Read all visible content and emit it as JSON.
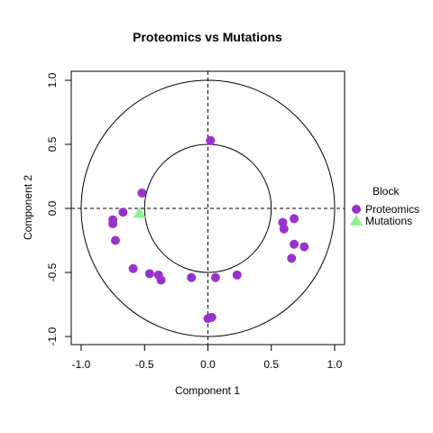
{
  "chart_data": {
    "type": "scatter",
    "title": "Proteomics vs Mutations",
    "xlabel": "Component  1",
    "ylabel": "Component  2",
    "xlim": [
      -1.0,
      1.0
    ],
    "ylim": [
      -1.0,
      1.0
    ],
    "x_ticks": [
      "-1.0",
      "-0.5",
      "0.0",
      "0.5",
      "1.0"
    ],
    "y_ticks": [
      "-1.0",
      "-0.5",
      "0.0",
      "0.5",
      "1.0"
    ],
    "x_tick_values": [
      -1.0,
      -0.5,
      0.0,
      0.5,
      1.0
    ],
    "y_tick_values": [
      -1.0,
      -0.5,
      0.0,
      0.5,
      1.0
    ],
    "circles_radius": [
      0.5,
      1.0
    ],
    "reference_lines": {
      "x": 0,
      "y": 0,
      "style": "dashed"
    },
    "legend": {
      "title": "Block",
      "placement": "right"
    },
    "series": [
      {
        "name": "Proteomics",
        "marker": "circle",
        "color": "#9932CC",
        "points": [
          [
            0.02,
            0.53
          ],
          [
            -0.52,
            0.12
          ],
          [
            -0.67,
            -0.03
          ],
          [
            -0.75,
            -0.09
          ],
          [
            -0.75,
            -0.12
          ],
          [
            -0.73,
            -0.25
          ],
          [
            -0.59,
            -0.47
          ],
          [
            -0.46,
            -0.51
          ],
          [
            -0.39,
            -0.52
          ],
          [
            -0.37,
            -0.56
          ],
          [
            -0.13,
            -0.54
          ],
          [
            0.06,
            -0.54
          ],
          [
            0.23,
            -0.52
          ],
          [
            0.0,
            -0.86
          ],
          [
            0.03,
            -0.85
          ],
          [
            0.59,
            -0.11
          ],
          [
            0.6,
            -0.16
          ],
          [
            0.68,
            -0.08
          ],
          [
            0.68,
            -0.28
          ],
          [
            0.76,
            -0.3
          ],
          [
            0.66,
            -0.39
          ]
        ]
      },
      {
        "name": "Mutations",
        "marker": "triangle",
        "color": "#90EE90",
        "points": [
          [
            -0.54,
            -0.04
          ]
        ]
      }
    ]
  }
}
